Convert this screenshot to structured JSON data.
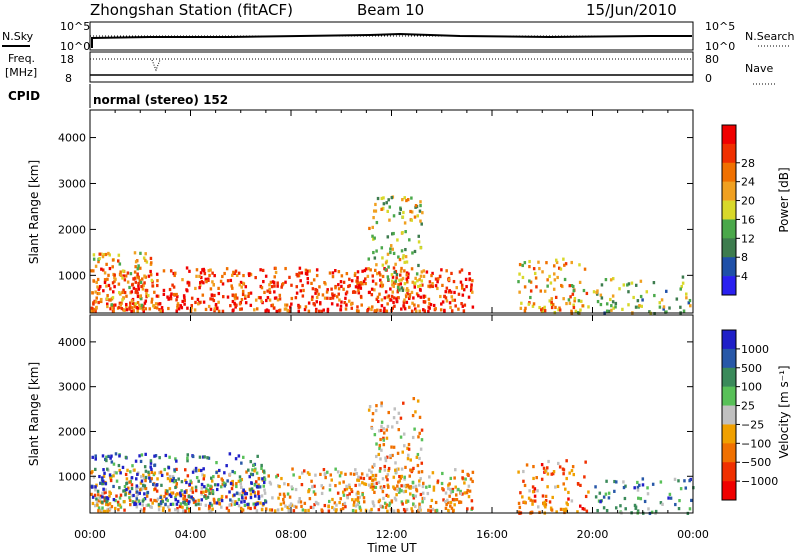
{
  "header": {
    "station": "Zhongshan Station (fitACF)",
    "beam": "Beam 10",
    "date": "15/Jun/2010"
  },
  "status_panels": {
    "nsky_label": "N.Sky",
    "nsearch_label": "N.Search",
    "freq_label_1": "Freq.",
    "freq_label_2": "[MHz]",
    "nave_label": "Nave",
    "cpid_label": "CPID",
    "cpid_value": "normal (stereo) 152",
    "left_ticks_top": [
      "10^5",
      "10^0"
    ],
    "right_ticks_top": [
      "10^5",
      "10^0"
    ],
    "left_ticks_freq": [
      "18",
      "8"
    ],
    "right_ticks_nave": [
      "80",
      "0"
    ]
  },
  "time_axis": {
    "label": "Time UT",
    "ticks": [
      "00:00",
      "04:00",
      "08:00",
      "12:00",
      "16:00",
      "20:00",
      "00:00"
    ]
  },
  "chart_data": [
    {
      "type": "heatmap",
      "name": "power",
      "ylabel": "Slant Range [km]",
      "yticks": [
        1000,
        2000,
        3000,
        4000
      ],
      "ylim": [
        180,
        4600
      ],
      "xlim": [
        0,
        24
      ],
      "colorbar_label": "Power [dB]",
      "colorbar_ticks": [
        "4",
        "8",
        "12",
        "16",
        "20",
        "24",
        "28"
      ],
      "colors": [
        "#2a20f0",
        "#1f50a8",
        "#3d7c4e",
        "#4aa84a",
        "#d8d82a",
        "#f0a020",
        "#f07000",
        "#f03000",
        "#f00000"
      ],
      "scatter_blobs": [
        {
          "t0": 0.0,
          "t1": 15.2,
          "r0": 250,
          "r1": 1200,
          "level": 7,
          "density": 0.9
        },
        {
          "t0": 0.0,
          "t1": 2.5,
          "r0": 300,
          "r1": 1550,
          "level": 5,
          "density": 0.6
        },
        {
          "t0": 11.0,
          "t1": 13.2,
          "r0": 700,
          "r1": 2800,
          "level": 4,
          "density": 0.5
        },
        {
          "t0": 17.0,
          "t1": 19.8,
          "r0": 200,
          "r1": 1400,
          "level": 5,
          "density": 0.55
        },
        {
          "t0": 20.0,
          "t1": 24.0,
          "r0": 200,
          "r1": 1000,
          "level": 3,
          "density": 0.4
        }
      ]
    },
    {
      "type": "heatmap",
      "name": "velocity",
      "ylabel": "Slant Range [km]",
      "yticks": [
        1000,
        2000,
        3000,
        4000
      ],
      "ylim": [
        180,
        4600
      ],
      "xlim": [
        0,
        24
      ],
      "colorbar_label": "Velocity [m s⁻¹]",
      "colorbar_ticks": [
        "1000",
        "500",
        "100",
        "25",
        "−25",
        "−100",
        "−500",
        "−1000"
      ],
      "colors": [
        "#2020c8",
        "#2858a8",
        "#3a8a5a",
        "#58c058",
        "#c0c0c0",
        "#f0a000",
        "#f07000",
        "#f03000",
        "#f00000"
      ],
      "scatter_blobs": [
        {
          "t0": 0.0,
          "t1": 15.2,
          "r0": 250,
          "r1": 1200,
          "level": 5,
          "density": 0.85
        },
        {
          "t0": 0.0,
          "t1": 7.0,
          "r0": 400,
          "r1": 1550,
          "level": 1,
          "density": 0.6
        },
        {
          "t0": 11.0,
          "t1": 13.2,
          "r0": 700,
          "r1": 2800,
          "level": 5,
          "density": 0.5
        },
        {
          "t0": 17.0,
          "t1": 19.8,
          "r0": 200,
          "r1": 1400,
          "level": 6,
          "density": 0.55
        },
        {
          "t0": 20.0,
          "t1": 24.0,
          "r0": 200,
          "r1": 1000,
          "level": 2,
          "density": 0.4
        }
      ]
    }
  ]
}
